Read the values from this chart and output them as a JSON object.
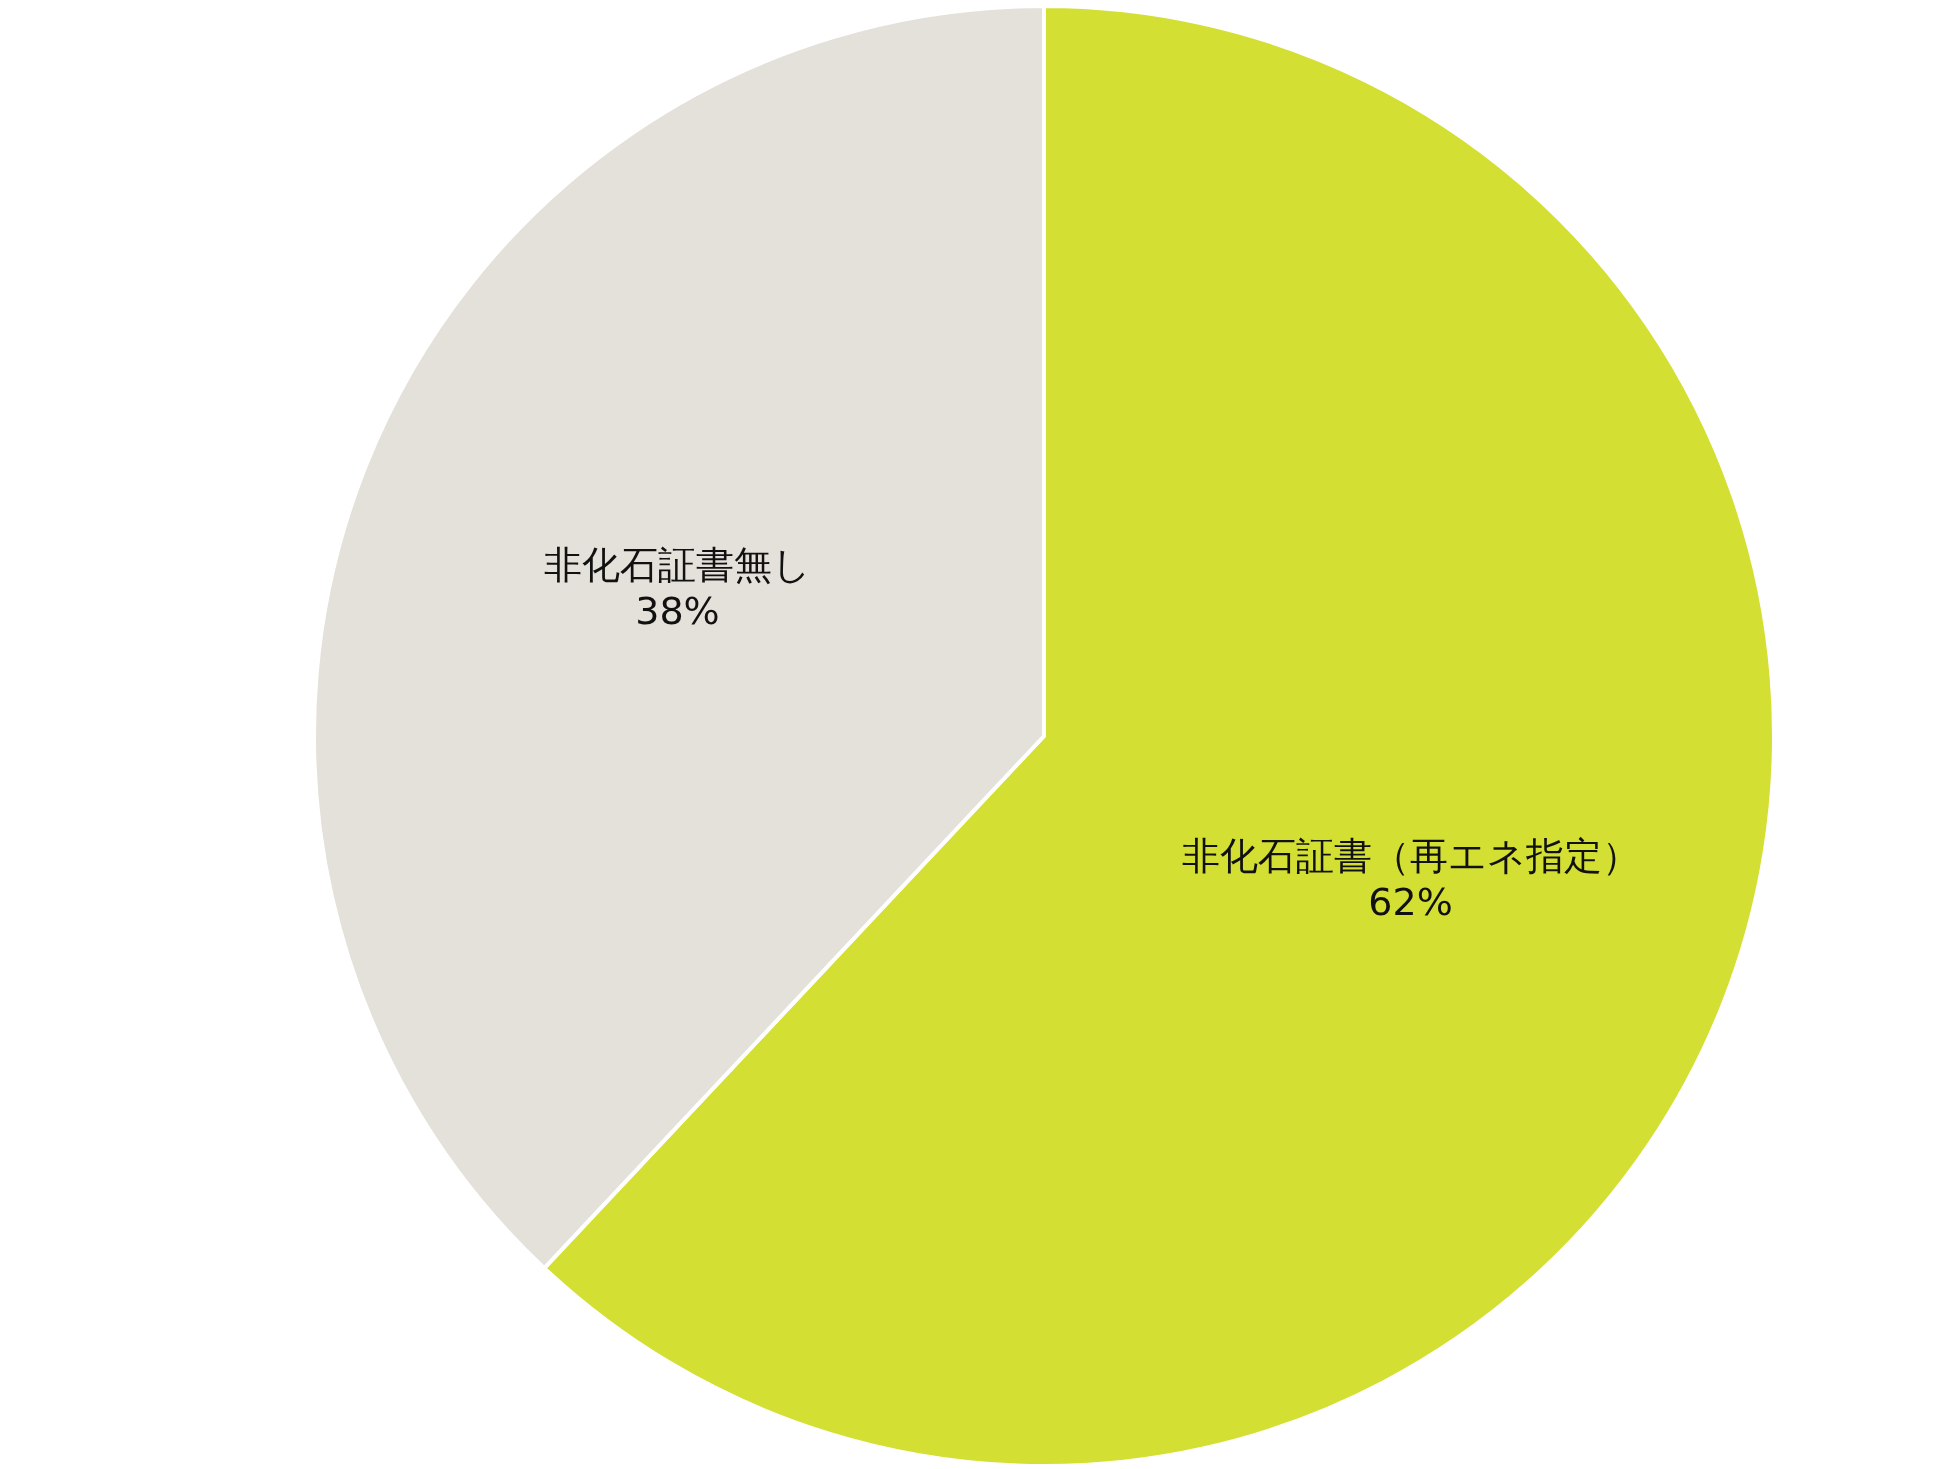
{
  "chart_data": {
    "type": "pie",
    "categories": [
      "非化石証書（再エネ指定）",
      "非化石証書無し"
    ],
    "values": [
      62,
      38
    ],
    "colors": [
      "#d4df33",
      "#e4e0da"
    ],
    "value_labels": [
      "62%",
      "38%"
    ]
  }
}
